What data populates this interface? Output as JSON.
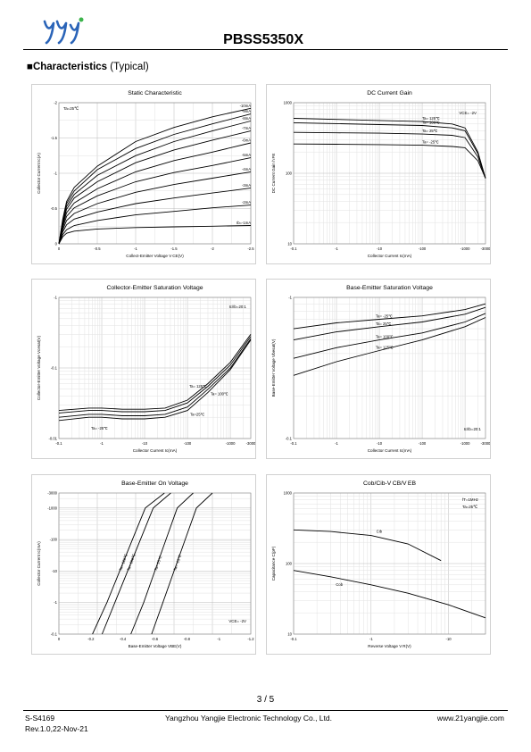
{
  "header": {
    "part_number": "PBSS5350X"
  },
  "section": {
    "bullet": "■",
    "title_bold": "Characteristics",
    "title_normal": "(Typical)"
  },
  "footer": {
    "doc_id": "S-S4169",
    "revision": "Rev.1.0,22-Nov-21",
    "company": "Yangzhou Yangjie Electronic Technology Co., Ltd.",
    "website": "www.21yangjie.com",
    "page": "3 / 5"
  },
  "chart_data": [
    {
      "type": "line",
      "title": "Static Characteristic",
      "xlabel": "Collect-Emitter Voltage V CE(V)",
      "ylabel": "Collector Current Ic(A)",
      "xscale": "linear",
      "yscale": "linear",
      "xlim": [
        0,
        -2.5
      ],
      "ylim": [
        0,
        -2
      ],
      "xticks": [
        "0",
        "-0.5",
        "-1",
        "-1.5",
        "-2",
        "-2.5"
      ],
      "yticks": [
        "0",
        "-0.5",
        "-1",
        "-1.5",
        "-2"
      ],
      "annotations": [
        "Ta=25℃"
      ],
      "series": [
        {
          "name": "-10mA",
          "x": [
            0,
            -0.05,
            -0.1,
            -0.2,
            -0.5,
            -1,
            -1.5,
            -2,
            -2.5
          ],
          "y": [
            0,
            -0.35,
            -0.6,
            -0.8,
            -1.1,
            -1.45,
            -1.65,
            -1.8,
            -1.92
          ]
        },
        {
          "name": "-9mA",
          "x": [
            0,
            -0.05,
            -0.1,
            -0.2,
            -0.5,
            -1,
            -1.5,
            -2,
            -2.5
          ],
          "y": [
            0,
            -0.33,
            -0.57,
            -0.75,
            -1.05,
            -1.35,
            -1.55,
            -1.7,
            -1.84
          ]
        },
        {
          "name": "-8mA",
          "x": [
            0,
            -0.05,
            -0.1,
            -0.2,
            -0.5,
            -1,
            -1.5,
            -2,
            -2.5
          ],
          "y": [
            0,
            -0.3,
            -0.53,
            -0.7,
            -0.97,
            -1.25,
            -1.45,
            -1.6,
            -1.74
          ]
        },
        {
          "name": "-7mA",
          "x": [
            0,
            -0.05,
            -0.1,
            -0.2,
            -0.5,
            -1,
            -1.5,
            -2,
            -2.5
          ],
          "y": [
            0,
            -0.28,
            -0.49,
            -0.65,
            -0.88,
            -1.15,
            -1.33,
            -1.47,
            -1.6
          ]
        },
        {
          "name": "-6mA",
          "x": [
            0,
            -0.05,
            -0.1,
            -0.2,
            -0.5,
            -1,
            -1.5,
            -2,
            -2.5
          ],
          "y": [
            0,
            -0.26,
            -0.44,
            -0.58,
            -0.78,
            -1.02,
            -1.18,
            -1.3,
            -1.43
          ]
        },
        {
          "name": "-5mA",
          "x": [
            0,
            -0.05,
            -0.1,
            -0.2,
            -0.5,
            -1,
            -1.5,
            -2,
            -2.5
          ],
          "y": [
            0,
            -0.23,
            -0.39,
            -0.51,
            -0.68,
            -0.88,
            -1.01,
            -1.11,
            -1.22
          ]
        },
        {
          "name": "-4mA",
          "x": [
            0,
            -0.05,
            -0.1,
            -0.2,
            -0.5,
            -1,
            -1.5,
            -2,
            -2.5
          ],
          "y": [
            0,
            -0.2,
            -0.33,
            -0.43,
            -0.57,
            -0.73,
            -0.84,
            -0.93,
            -1.02
          ]
        },
        {
          "name": "-3mA",
          "x": [
            0,
            -0.05,
            -0.1,
            -0.2,
            -0.5,
            -1,
            -1.5,
            -2,
            -2.5
          ],
          "y": [
            0,
            -0.17,
            -0.27,
            -0.35,
            -0.45,
            -0.57,
            -0.65,
            -0.72,
            -0.79
          ]
        },
        {
          "name": "-2mA",
          "x": [
            0,
            -0.05,
            -0.1,
            -0.2,
            -0.5,
            -1,
            -1.5,
            -2,
            -2.5
          ],
          "y": [
            0,
            -0.13,
            -0.2,
            -0.26,
            -0.33,
            -0.41,
            -0.46,
            -0.51,
            -0.55
          ]
        },
        {
          "name": "Ib=-1mA",
          "x": [
            0,
            -0.05,
            -0.1,
            -0.2,
            -0.5,
            -1,
            -1.5,
            -2,
            -2.5
          ],
          "y": [
            0,
            -0.1,
            -0.15,
            -0.18,
            -0.21,
            -0.23,
            -0.24,
            -0.25,
            -0.26
          ]
        }
      ]
    },
    {
      "type": "line",
      "title": "DC Current Gain",
      "xlabel": "Collector Current Ic(mA)",
      "ylabel": "DC Current Gain h FE",
      "xscale": "log",
      "yscale": "log",
      "xlim": [
        0.1,
        3000
      ],
      "ylim": [
        10,
        1000
      ],
      "xticks": [
        "-0.1",
        "-1",
        "-10",
        "-100",
        "-1000",
        "-3000"
      ],
      "yticks": [
        "10",
        "100",
        "1000"
      ],
      "annotations": [
        "VCE= -2V"
      ],
      "series": [
        {
          "name": "Ta= 125℃",
          "x": [
            0.1,
            1,
            10,
            100,
            500,
            1000,
            2000,
            3000
          ],
          "y": [
            600,
            580,
            560,
            540,
            500,
            440,
            200,
            85
          ]
        },
        {
          "name": "Ta= 100℃",
          "x": [
            0.1,
            1,
            10,
            100,
            500,
            1000,
            2000,
            3000
          ],
          "y": [
            520,
            505,
            490,
            475,
            440,
            400,
            190,
            85
          ]
        },
        {
          "name": "Ta= 25℃",
          "x": [
            0.1,
            1,
            10,
            100,
            500,
            1000,
            2000,
            3000
          ],
          "y": [
            380,
            375,
            370,
            360,
            345,
            320,
            170,
            85
          ]
        },
        {
          "name": "Ta= -25℃",
          "x": [
            0.1,
            1,
            10,
            100,
            500,
            1000,
            2000,
            3000
          ],
          "y": [
            260,
            258,
            255,
            250,
            240,
            230,
            150,
            85
          ]
        }
      ]
    },
    {
      "type": "line",
      "title": "Collector-Emitter Saturation Voltage",
      "xlabel": "Collector Current Ic(mA)",
      "ylabel": "Collector-Emitter Voltage Vcesat(V)",
      "xscale": "log",
      "yscale": "log",
      "xlim": [
        0.1,
        3000
      ],
      "ylim": [
        0.01,
        1
      ],
      "xticks": [
        "-0.1",
        "-1",
        "-10",
        "-100",
        "-1000",
        "-3000"
      ],
      "yticks": [
        "-0.01",
        "-0.1",
        "-1"
      ],
      "annotations": [
        "Ic/Ib=20:1"
      ],
      "series": [
        {
          "name": "Ta= 125℃",
          "x": [
            0.1,
            0.5,
            1,
            3,
            10,
            30,
            100,
            300,
            1000,
            3000
          ],
          "y": [
            0.025,
            0.027,
            0.027,
            0.026,
            0.026,
            0.027,
            0.035,
            0.06,
            0.12,
            0.3
          ]
        },
        {
          "name": "Ta= 100℃",
          "x": [
            0.1,
            0.5,
            1,
            3,
            10,
            30,
            100,
            300,
            1000,
            3000
          ],
          "y": [
            0.023,
            0.025,
            0.025,
            0.024,
            0.024,
            0.025,
            0.032,
            0.055,
            0.11,
            0.28
          ]
        },
        {
          "name": "Ta=25℃",
          "x": [
            0.1,
            0.5,
            1,
            3,
            10,
            30,
            100,
            300,
            1000,
            3000
          ],
          "y": [
            0.02,
            0.022,
            0.022,
            0.021,
            0.021,
            0.022,
            0.028,
            0.05,
            0.1,
            0.26
          ]
        },
        {
          "name": "Ta= -25℃",
          "x": [
            0.1,
            0.5,
            1,
            3,
            10,
            30,
            100,
            300,
            1000,
            3000
          ],
          "y": [
            0.018,
            0.02,
            0.02,
            0.019,
            0.019,
            0.02,
            0.025,
            0.045,
            0.095,
            0.25
          ]
        }
      ]
    },
    {
      "type": "line",
      "title": "Base-Emitter Saturation Voltage",
      "xlabel": "Collector Current Ic(mA)",
      "ylabel": "Base-Emitter Voltage Vbesat(V)",
      "xscale": "log",
      "yscale": "log",
      "xlim": [
        0.1,
        3000
      ],
      "ylim": [
        0.1,
        1
      ],
      "xticks": [
        "-0.1",
        "-1",
        "-10",
        "-100",
        "-1000",
        "-3000"
      ],
      "yticks": [
        "-0.1",
        "-1"
      ],
      "annotations": [
        "Ic/Ib=20:1"
      ],
      "series": [
        {
          "name": "Ta= -25℃",
          "x": [
            0.1,
            1,
            10,
            100,
            1000,
            3000
          ],
          "y": [
            0.6,
            0.66,
            0.7,
            0.74,
            0.82,
            0.9
          ]
        },
        {
          "name": "Ta= 25℃",
          "x": [
            0.1,
            1,
            10,
            100,
            1000,
            3000
          ],
          "y": [
            0.5,
            0.57,
            0.62,
            0.67,
            0.76,
            0.85
          ]
        },
        {
          "name": "Ta= 100℃",
          "x": [
            0.1,
            1,
            10,
            100,
            1000,
            3000
          ],
          "y": [
            0.37,
            0.44,
            0.5,
            0.56,
            0.67,
            0.77
          ]
        },
        {
          "name": "Ta= 125℃",
          "x": [
            0.1,
            1,
            10,
            100,
            1000,
            3000
          ],
          "y": [
            0.28,
            0.35,
            0.42,
            0.5,
            0.62,
            0.72
          ]
        }
      ]
    },
    {
      "type": "line",
      "title": "Base-Emitter On Voltage",
      "xlabel": "Base-Emitter Voltage VBE(V)",
      "ylabel": "Collector Current Ic(mA)",
      "xscale": "linear",
      "yscale": "log",
      "xlim": [
        0,
        -1.2
      ],
      "ylim": [
        0.1,
        3000
      ],
      "xticks": [
        "0",
        "-0.2",
        "-0.4",
        "-0.6",
        "-0.8",
        "-1",
        "-1.2"
      ],
      "yticks": [
        "-0.1",
        "-1",
        "-10",
        "-100",
        "-1000",
        "-3000"
      ],
      "annotations": [
        "VCE= -2V"
      ],
      "series": [
        {
          "name": "Ta= 125℃",
          "x": [
            -0.21,
            -0.3,
            -0.38,
            -0.46,
            -0.54,
            -0.66
          ],
          "y": [
            0.1,
            1,
            10,
            100,
            1000,
            3000
          ]
        },
        {
          "name": "Ta= 100℃",
          "x": [
            -0.27,
            -0.35,
            -0.43,
            -0.51,
            -0.59,
            -0.7
          ],
          "y": [
            0.1,
            1,
            10,
            100,
            1000,
            3000
          ]
        },
        {
          "name": "Ta= 25℃",
          "x": [
            -0.45,
            -0.53,
            -0.6,
            -0.67,
            -0.74,
            -0.84
          ],
          "y": [
            0.1,
            1,
            10,
            100,
            1000,
            3000
          ]
        },
        {
          "name": "Ta= -25℃",
          "x": [
            -0.58,
            -0.65,
            -0.72,
            -0.79,
            -0.86,
            -0.96
          ],
          "y": [
            0.1,
            1,
            10,
            100,
            1000,
            3000
          ]
        }
      ]
    },
    {
      "type": "line",
      "title": "Cob/Cib-V CB/V EB",
      "xlabel": "Reverse Voltage V R(V)",
      "ylabel": "Capacitance C(pF)",
      "xscale": "log",
      "yscale": "log",
      "xlim": [
        0.1,
        30
      ],
      "ylim": [
        10,
        1000
      ],
      "xticks": [
        "-0.1",
        "-1",
        "-10"
      ],
      "yticks": [
        "10",
        "100",
        "1000"
      ],
      "annotations": [
        "fT=1MHz",
        "Ta=25℃"
      ],
      "series": [
        {
          "name": "Cib",
          "x": [
            0.1,
            0.3,
            1,
            3,
            8
          ],
          "y": [
            300,
            285,
            250,
            190,
            110
          ]
        },
        {
          "name": "Cob",
          "x": [
            0.1,
            0.3,
            1,
            3,
            10,
            30
          ],
          "y": [
            80,
            65,
            50,
            38,
            26,
            17
          ]
        }
      ]
    }
  ]
}
